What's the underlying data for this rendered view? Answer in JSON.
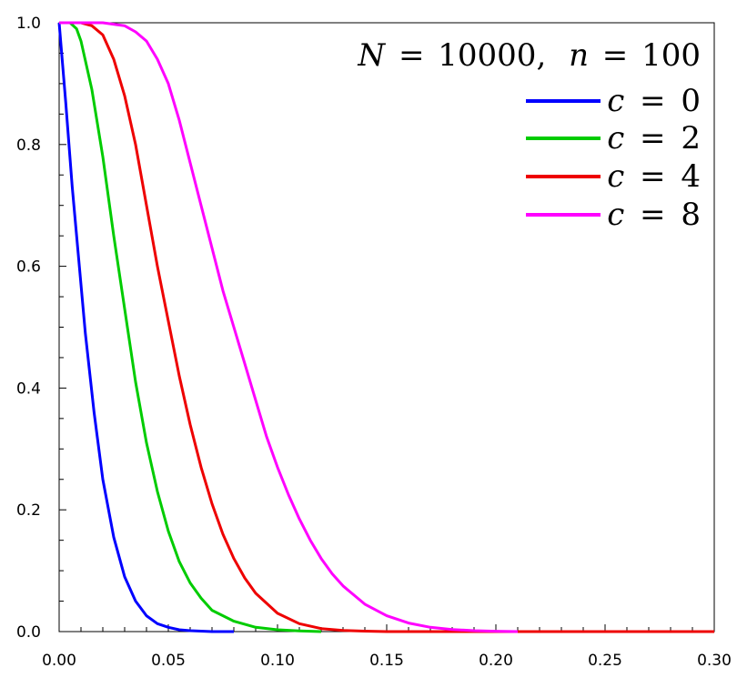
{
  "chart_data": {
    "type": "line",
    "title": "",
    "xlabel": "",
    "ylabel": "",
    "xlim": [
      0.0,
      0.3
    ],
    "ylim": [
      0.0,
      1.0
    ],
    "x_ticks": [
      "0.00",
      "0.05",
      "0.10",
      "0.15",
      "0.20",
      "0.25",
      "0.30"
    ],
    "y_ticks": [
      "0.0",
      "0.2",
      "0.4",
      "0.6",
      "0.8",
      "1.0"
    ],
    "grid": false,
    "legend_position": "top-right",
    "annotation": {
      "N_symbol": "N",
      "eq1": "=",
      "N_value": "10000,",
      "n_symbol": "n",
      "eq2": "=",
      "n_value": "100"
    },
    "series": [
      {
        "label_symbol": "c",
        "label_eq": "=",
        "label_value": "0",
        "color": "#0000ff",
        "x": [
          0.0,
          0.003,
          0.006,
          0.009,
          0.012,
          0.016,
          0.02,
          0.025,
          0.03,
          0.035,
          0.04,
          0.045,
          0.05,
          0.055,
          0.06,
          0.07,
          0.08
        ],
        "y": [
          1.0,
          0.87,
          0.73,
          0.61,
          0.49,
          0.36,
          0.25,
          0.155,
          0.09,
          0.05,
          0.026,
          0.013,
          0.007,
          0.003,
          0.0015,
          0.0,
          0.0
        ]
      },
      {
        "label_symbol": "c",
        "label_eq": "=",
        "label_value": "2",
        "color": "#00cc00",
        "x": [
          0.0,
          0.005,
          0.008,
          0.01,
          0.015,
          0.02,
          0.025,
          0.03,
          0.035,
          0.04,
          0.045,
          0.05,
          0.055,
          0.06,
          0.065,
          0.07,
          0.08,
          0.09,
          0.1,
          0.11,
          0.12
        ],
        "y": [
          1.0,
          1.0,
          0.99,
          0.97,
          0.89,
          0.78,
          0.65,
          0.53,
          0.41,
          0.31,
          0.23,
          0.165,
          0.115,
          0.08,
          0.055,
          0.035,
          0.017,
          0.007,
          0.003,
          0.0012,
          0.0
        ]
      },
      {
        "label_symbol": "c",
        "label_eq": "=",
        "label_value": "4",
        "color": "#ee0000",
        "x": [
          0.0,
          0.01,
          0.015,
          0.02,
          0.025,
          0.03,
          0.035,
          0.04,
          0.045,
          0.05,
          0.055,
          0.06,
          0.065,
          0.07,
          0.075,
          0.08,
          0.085,
          0.09,
          0.1,
          0.11,
          0.12,
          0.13,
          0.14,
          0.15,
          0.3
        ],
        "y": [
          1.0,
          1.0,
          0.995,
          0.98,
          0.94,
          0.88,
          0.8,
          0.7,
          0.6,
          0.51,
          0.42,
          0.34,
          0.27,
          0.21,
          0.16,
          0.12,
          0.088,
          0.063,
          0.03,
          0.013,
          0.005,
          0.002,
          0.0007,
          0.0,
          0.0
        ]
      },
      {
        "label_symbol": "c",
        "label_eq": "=",
        "label_value": "8",
        "color": "#ff00ff",
        "x": [
          0.0,
          0.02,
          0.03,
          0.035,
          0.04,
          0.045,
          0.05,
          0.055,
          0.06,
          0.065,
          0.07,
          0.075,
          0.08,
          0.085,
          0.09,
          0.095,
          0.1,
          0.105,
          0.11,
          0.115,
          0.12,
          0.125,
          0.13,
          0.14,
          0.15,
          0.16,
          0.17,
          0.18,
          0.19,
          0.2,
          0.21
        ],
        "y": [
          1.0,
          1.0,
          0.995,
          0.985,
          0.97,
          0.94,
          0.9,
          0.84,
          0.77,
          0.7,
          0.63,
          0.56,
          0.5,
          0.44,
          0.38,
          0.32,
          0.27,
          0.225,
          0.185,
          0.15,
          0.12,
          0.095,
          0.075,
          0.045,
          0.026,
          0.014,
          0.007,
          0.0035,
          0.0015,
          0.0006,
          0.0
        ]
      }
    ]
  }
}
